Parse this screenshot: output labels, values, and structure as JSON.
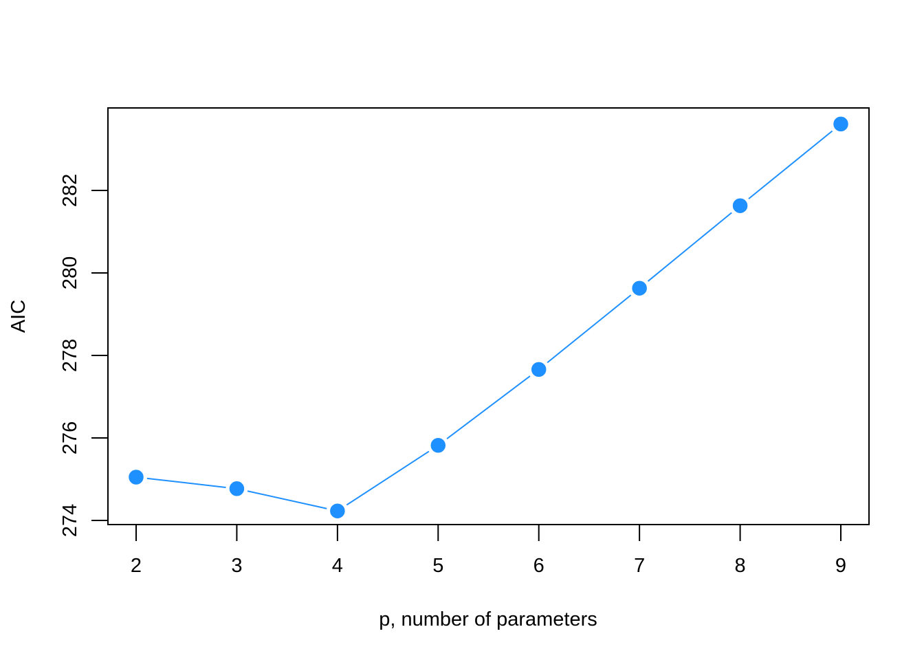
{
  "chart_data": {
    "type": "line",
    "title": "",
    "xlabel": "p, number of parameters",
    "ylabel": "AIC",
    "x": [
      2,
      3,
      4,
      5,
      6,
      7,
      8,
      9
    ],
    "series": [
      {
        "values": [
          275.05,
          274.77,
          274.23,
          275.82,
          277.66,
          279.63,
          281.63,
          283.61
        ]
      }
    ],
    "xlim": [
      1.72,
      9.28
    ],
    "ylim": [
      273.9,
      284.0
    ],
    "xticks": [
      "2",
      "3",
      "4",
      "5",
      "6",
      "7",
      "8",
      "9"
    ],
    "yticks": [
      "274",
      "276",
      "278",
      "280",
      "282"
    ],
    "grid": false,
    "legend": "none",
    "colors": {
      "series": "#1E90FF",
      "axes": "#000000",
      "point_edge": "#ffffff"
    }
  }
}
